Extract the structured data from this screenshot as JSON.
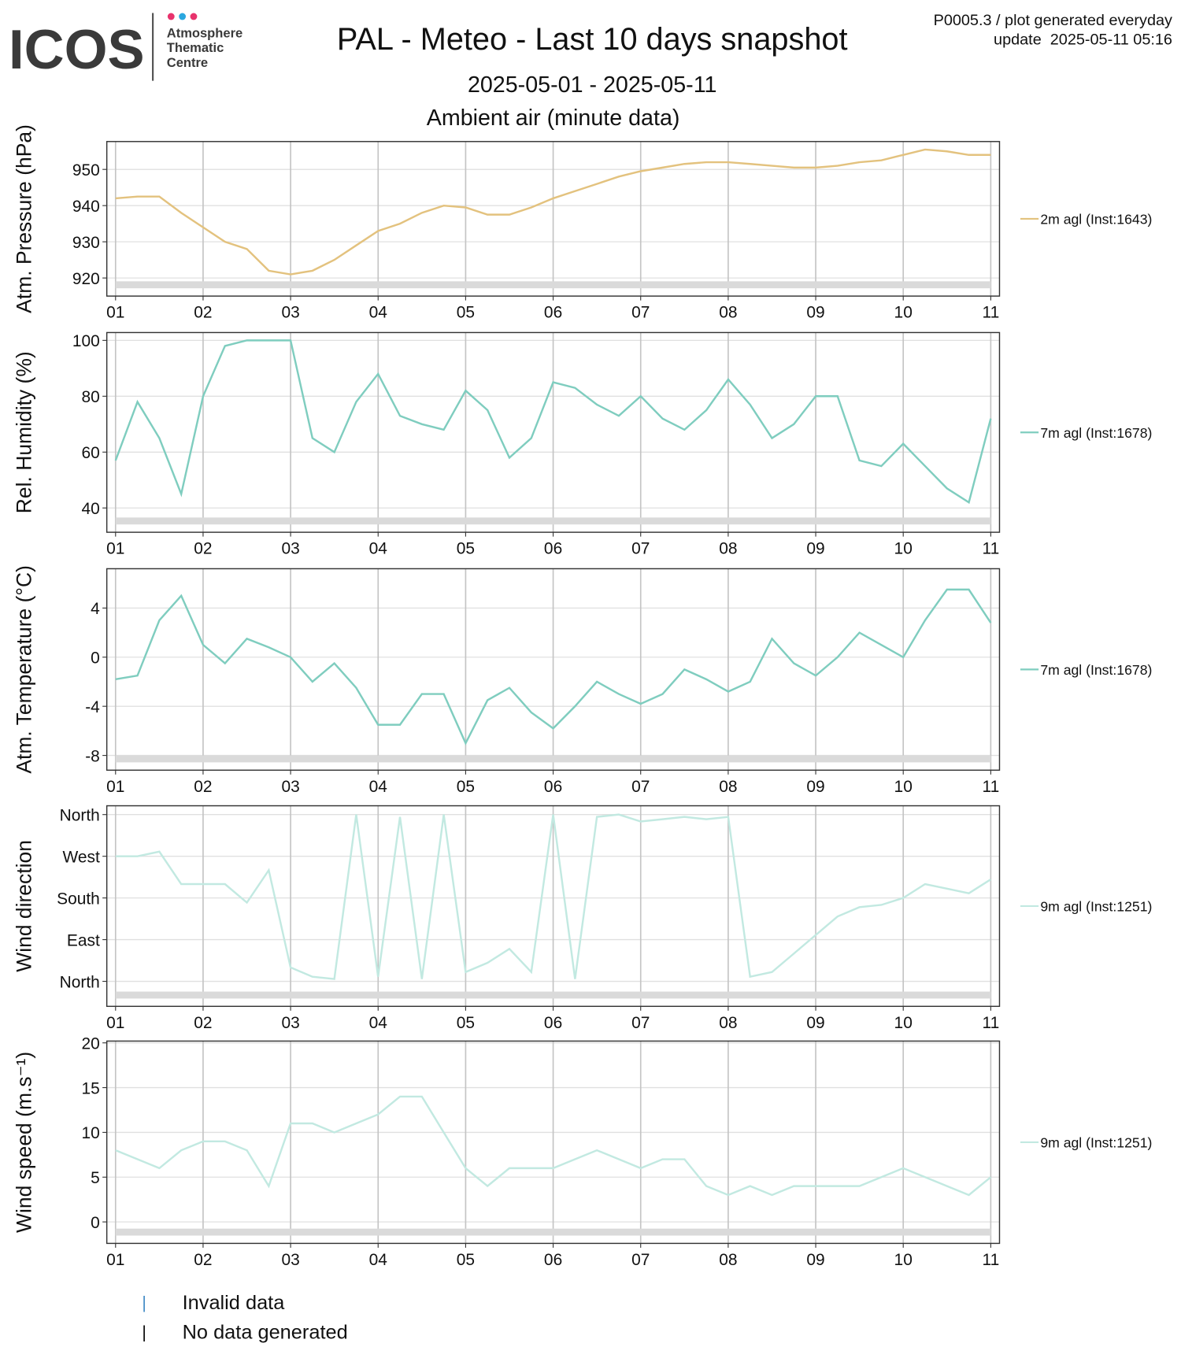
{
  "header": {
    "logo": "ICOS",
    "logo_sub": [
      "Atmosphere",
      "Thematic",
      "Centre"
    ],
    "title": "PAL - Meteo - Last 10 days snapshot",
    "subtitle": "2025-05-01 - 2025-05-11",
    "subtitle2": "Ambient air (minute data)",
    "note": "P0005.3 / plot generated everyday",
    "update": "update  2025-05-11 05:16"
  },
  "legend": {
    "invalid": "Invalid data",
    "invalid_color": "#4a90c8",
    "nodata": "No data generated",
    "nodata_color": "#111111"
  },
  "chart_data": [
    {
      "type": "line",
      "ylabel": "Atm. Pressure (hPa)",
      "x": [
        1,
        1.25,
        1.5,
        1.75,
        2,
        2.25,
        2.5,
        2.75,
        3,
        3.25,
        3.5,
        3.75,
        4,
        4.25,
        4.5,
        4.75,
        5,
        5.25,
        5.5,
        5.75,
        6,
        6.25,
        6.5,
        6.75,
        7,
        7.25,
        7.5,
        7.75,
        8,
        8.25,
        8.5,
        8.75,
        9,
        9.25,
        9.5,
        9.75,
        10,
        10.25,
        10.5,
        10.75,
        11
      ],
      "series": [
        {
          "name": "2m agl (Inst:1643)",
          "color": "#e3c27e",
          "values": [
            942,
            942.5,
            942.5,
            938,
            934,
            930,
            928,
            922,
            921,
            922,
            925,
            929,
            933,
            935,
            938,
            940,
            939.5,
            937.5,
            937.5,
            939.5,
            942,
            944,
            946,
            948,
            949.5,
            950.5,
            951.5,
            952,
            952,
            951.5,
            951,
            950.5,
            950.5,
            951,
            952,
            952.5,
            954,
            955.5,
            955,
            954,
            954
          ]
        }
      ],
      "xlim": [
        0.9,
        11.1
      ],
      "ylim": [
        915,
        957.7
      ],
      "yticks": [
        920,
        930,
        940,
        950
      ],
      "xticks": [
        {
          "value": 1,
          "label": "01"
        },
        {
          "value": 2,
          "label": "02"
        },
        {
          "value": 3,
          "label": "03"
        },
        {
          "value": 4,
          "label": "04"
        },
        {
          "value": 5,
          "label": "05"
        },
        {
          "value": 6,
          "label": "06"
        },
        {
          "value": 7,
          "label": "07"
        },
        {
          "value": 8,
          "label": "08"
        },
        {
          "value": 9,
          "label": "09"
        },
        {
          "value": 10,
          "label": "10"
        },
        11
      ]
    },
    {
      "type": "line",
      "ylabel": "Rel. Humidity (%)",
      "x": [
        1,
        1.25,
        1.5,
        1.75,
        2,
        2.25,
        2.5,
        2.75,
        3,
        3.25,
        3.5,
        3.75,
        4,
        4.25,
        4.5,
        4.75,
        5,
        5.25,
        5.5,
        5.75,
        6,
        6.25,
        6.5,
        6.75,
        7,
        7.25,
        7.5,
        7.75,
        8,
        8.25,
        8.5,
        8.75,
        9,
        9.25,
        9.5,
        9.75,
        10,
        10.25,
        10.5,
        10.75,
        11
      ],
      "series": [
        {
          "name": "7m agl (Inst:1678)",
          "color": "#7fcdbf",
          "values": [
            57,
            78,
            65,
            45,
            80,
            98,
            100,
            100,
            100,
            65,
            60,
            78,
            88,
            73,
            70,
            68,
            82,
            75,
            58,
            65,
            85,
            83,
            77,
            73,
            80,
            72,
            68,
            75,
            86,
            77,
            65,
            70,
            80,
            80,
            57,
            55,
            63,
            55,
            47,
            42,
            72
          ]
        }
      ],
      "xlim": [
        0.9,
        11.1
      ],
      "ylim": [
        31.3,
        102.8
      ],
      "yticks": [
        40,
        60,
        80,
        100
      ],
      "xticks": [
        {
          "value": 1,
          "label": "01"
        },
        {
          "value": 2,
          "label": "02"
        },
        {
          "value": 3,
          "label": "03"
        },
        {
          "value": 4,
          "label": "04"
        },
        {
          "value": 5,
          "label": "05"
        },
        {
          "value": 6,
          "label": "06"
        },
        {
          "value": 7,
          "label": "07"
        },
        {
          "value": 8,
          "label": "08"
        },
        {
          "value": 9,
          "label": "09"
        },
        {
          "value": 10,
          "label": "10"
        },
        11
      ]
    },
    {
      "type": "line",
      "ylabel": "Atm. Temperature (°C)",
      "x": [
        1,
        1.25,
        1.5,
        1.75,
        2,
        2.25,
        2.5,
        2.75,
        3,
        3.25,
        3.5,
        3.75,
        4,
        4.25,
        4.5,
        4.75,
        5,
        5.25,
        5.5,
        5.75,
        6,
        6.25,
        6.5,
        6.75,
        7,
        7.25,
        7.5,
        7.75,
        8,
        8.25,
        8.5,
        8.75,
        9,
        9.25,
        9.5,
        9.75,
        10,
        10.25,
        10.5,
        10.75,
        11
      ],
      "series": [
        {
          "name": "7m agl (Inst:1678)",
          "color": "#7fcdbf",
          "values": [
            -1.8,
            -1.5,
            3,
            5,
            1,
            -0.5,
            1.5,
            0.8,
            0,
            -2,
            -0.5,
            -2.5,
            -5.5,
            -5.5,
            -3,
            -3,
            -7,
            -3.5,
            -2.5,
            -4.5,
            -5.8,
            -4,
            -2,
            -3,
            -3.8,
            -3,
            -1,
            -1.8,
            -2.8,
            -2,
            1.5,
            -0.5,
            -1.5,
            0,
            2,
            1,
            0,
            3,
            5.5,
            5.5,
            2.8
          ]
        }
      ],
      "xlim": [
        0.9,
        11.1
      ],
      "ylim": [
        -9.2,
        7.2
      ],
      "yticks": [
        -8,
        -4,
        0,
        4
      ],
      "xticks": [
        {
          "value": 1,
          "label": "01"
        },
        {
          "value": 2,
          "label": "02"
        },
        {
          "value": 3,
          "label": "03"
        },
        {
          "value": 4,
          "label": "04"
        },
        {
          "value": 5,
          "label": "05"
        },
        {
          "value": 6,
          "label": "06"
        },
        {
          "value": 7,
          "label": "07"
        },
        {
          "value": 8,
          "label": "08"
        },
        {
          "value": 9,
          "label": "09"
        },
        {
          "value": 10,
          "label": "10"
        },
        11
      ]
    },
    {
      "type": "line",
      "ylabel": "Wind direction",
      "x": [
        1,
        1.25,
        1.5,
        1.75,
        2,
        2.25,
        2.5,
        2.75,
        3,
        3.25,
        3.5,
        3.75,
        4,
        4.25,
        4.5,
        4.75,
        5,
        5.25,
        5.5,
        5.75,
        6,
        6.25,
        6.5,
        6.75,
        7,
        7.25,
        7.5,
        7.75,
        8,
        8.25,
        8.5,
        8.75,
        9,
        9.25,
        9.5,
        9.75,
        10,
        10.25,
        10.5,
        10.75,
        11
      ],
      "series": [
        {
          "name": "9m agl (Inst:1251)",
          "color": "#c2e9e1",
          "values": [
            270,
            270,
            280,
            210,
            210,
            210,
            170,
            240,
            30,
            10,
            5,
            360,
            10,
            355,
            5,
            360,
            20,
            40,
            70,
            20,
            360,
            5,
            355,
            360,
            345,
            350,
            355,
            350,
            355,
            10,
            20,
            60,
            100,
            140,
            160,
            165,
            180,
            210,
            200,
            190,
            220
          ]
        }
      ],
      "xlim": [
        0.9,
        11.1
      ],
      "ylim": [
        -54,
        379
      ],
      "yticks": [
        {
          "value": 0,
          "label": "North"
        },
        {
          "value": 90,
          "label": "East"
        },
        {
          "value": 180,
          "label": "South"
        },
        {
          "value": 270,
          "label": "West"
        },
        {
          "value": 360,
          "label": "North"
        }
      ],
      "xticks": [
        {
          "value": 1,
          "label": "01"
        },
        {
          "value": 2,
          "label": "02"
        },
        {
          "value": 3,
          "label": "03"
        },
        {
          "value": 4,
          "label": "04"
        },
        {
          "value": 5,
          "label": "05"
        },
        {
          "value": 6,
          "label": "06"
        },
        {
          "value": 7,
          "label": "07"
        },
        {
          "value": 8,
          "label": "08"
        },
        {
          "value": 9,
          "label": "09"
        },
        {
          "value": 10,
          "label": "10"
        },
        11
      ]
    },
    {
      "type": "line",
      "ylabel": "Wind speed (m.s⁻¹)",
      "x": [
        1,
        1.25,
        1.5,
        1.75,
        2,
        2.25,
        2.5,
        2.75,
        3,
        3.25,
        3.5,
        3.75,
        4,
        4.25,
        4.5,
        4.75,
        5,
        5.25,
        5.5,
        5.75,
        6,
        6.25,
        6.5,
        6.75,
        7,
        7.25,
        7.5,
        7.75,
        8,
        8.25,
        8.5,
        8.75,
        9,
        9.25,
        9.5,
        9.75,
        10,
        10.25,
        10.5,
        10.75,
        11
      ],
      "series": [
        {
          "name": "9m agl (Inst:1251)",
          "color": "#c2e9e1",
          "values": [
            8,
            7,
            6,
            8,
            9,
            9,
            8,
            4,
            11,
            11,
            10,
            11,
            12,
            14,
            14,
            10,
            6,
            4,
            6,
            6,
            6,
            7,
            8,
            7,
            6,
            7,
            7,
            4,
            3,
            4,
            3,
            4,
            4,
            4,
            4,
            5,
            6,
            5,
            4,
            3,
            5
          ]
        }
      ],
      "xlim": [
        0.9,
        11.1
      ],
      "ylim": [
        -2.4,
        20.2
      ],
      "yticks": [
        0,
        5,
        10,
        15,
        20
      ],
      "xticks": [
        {
          "value": 1,
          "label": "01"
        },
        {
          "value": 2,
          "label": "02"
        },
        {
          "value": 3,
          "label": "03"
        },
        {
          "value": 4,
          "label": "04"
        },
        {
          "value": 5,
          "label": "05"
        },
        {
          "value": 6,
          "label": "06"
        },
        {
          "value": 7,
          "label": "07"
        },
        {
          "value": 8,
          "label": "08"
        },
        {
          "value": 9,
          "label": "09"
        },
        {
          "value": 10,
          "label": "10"
        },
        11
      ]
    }
  ]
}
